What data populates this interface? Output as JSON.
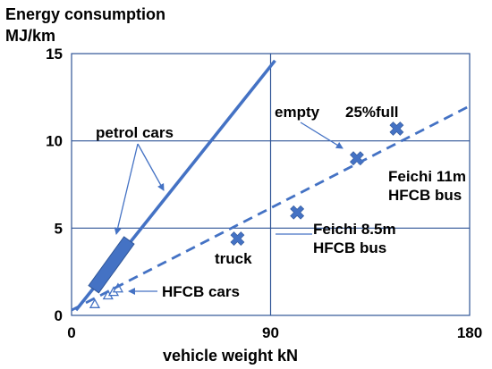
{
  "chart_data": {
    "type": "scatter",
    "title": "Energy consumption",
    "ylabel": "MJ/km",
    "xlabel": "vehicle  weight  kN",
    "xlim": [
      0,
      180
    ],
    "ylim": [
      0,
      15
    ],
    "xticks": [
      0,
      90,
      180
    ],
    "yticks": [
      0,
      5,
      10,
      15
    ],
    "grid": {
      "horizontal": [
        5,
        10
      ],
      "vertical": [
        90
      ]
    },
    "colors": {
      "series": "#4472C4",
      "grid": "#2F5597",
      "text": "#000000"
    },
    "series": [
      {
        "name": "petrol cars",
        "kind": "trend-line",
        "style": "solid",
        "x": [
          2,
          92
        ],
        "y": [
          0.3,
          14.6
        ]
      },
      {
        "name": "petrol cars",
        "kind": "range-bar",
        "x": [
          10,
          26
        ],
        "y": [
          1.5,
          4.3
        ]
      },
      {
        "name": "HFCB cars",
        "kind": "points",
        "marker": "triangle-open",
        "x": [
          10.5,
          16.5,
          19,
          21
        ],
        "y": [
          0.65,
          1.15,
          1.35,
          1.55
        ]
      },
      {
        "name": "truck",
        "kind": "point",
        "marker": "x-filled",
        "x": [
          75
        ],
        "y": [
          4.4
        ]
      },
      {
        "name": "Feichi 8.5m HFCB bus",
        "kind": "point",
        "marker": "x-filled",
        "x": [
          102
        ],
        "y": [
          5.9
        ]
      },
      {
        "name": "empty",
        "kind": "point",
        "marker": "x-filled",
        "x": [
          129
        ],
        "y": [
          9.0
        ]
      },
      {
        "name": "25%full",
        "kind": "point",
        "marker": "x-filled",
        "x": [
          147
        ],
        "y": [
          10.7
        ]
      },
      {
        "name": "trend",
        "kind": "trend-line",
        "style": "dashed",
        "x": [
          0,
          180
        ],
        "y": [
          0.3,
          12.0
        ]
      }
    ],
    "annotations": [
      {
        "text": "petrol cars"
      },
      {
        "text": "empty"
      },
      {
        "text": "25%full"
      },
      {
        "text_lines": [
          "Feichi 11m",
          "HFCB bus"
        ]
      },
      {
        "text_lines": [
          "Feichi 8.5m",
          "HFCB bus"
        ]
      },
      {
        "text": "truck"
      },
      {
        "text": "HFCB cars"
      }
    ]
  }
}
